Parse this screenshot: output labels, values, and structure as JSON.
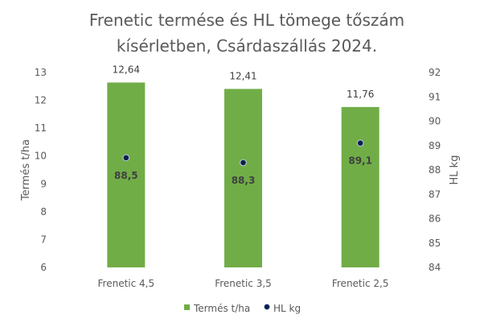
{
  "chart_data": {
    "type": "bar",
    "title_line1": "Frenetic termése és HL tömege tőszám",
    "title_line2": "kísérletben, Csárdaszállás 2024.",
    "categories": [
      "Frenetic 4,5",
      "Frenetic 3,5",
      "Frenetic 2,5"
    ],
    "series": [
      {
        "name": "Termés t/ha",
        "type": "bar",
        "axis": "left",
        "values": [
          12.64,
          12.41,
          11.76
        ],
        "labels": [
          "12,64",
          "12,41",
          "11,76"
        ],
        "color": "#70ad47"
      },
      {
        "name": "HL kg",
        "type": "scatter",
        "axis": "right",
        "values": [
          88.5,
          88.3,
          89.1
        ],
        "labels": [
          "88,5",
          "88,3",
          "89,1"
        ],
        "color": "#0b1f4d"
      }
    ],
    "ylabel": "Termés t/ha",
    "y2label": "HL kg",
    "ylim": [
      6,
      13
    ],
    "y2lim": [
      84,
      92
    ],
    "yticks": [
      "6",
      "7",
      "8",
      "9",
      "10",
      "11",
      "12",
      "13"
    ],
    "y2ticks": [
      "84",
      "85",
      "86",
      "87",
      "88",
      "89",
      "90",
      "91",
      "92"
    ],
    "grid": false,
    "legend": "bottom"
  }
}
